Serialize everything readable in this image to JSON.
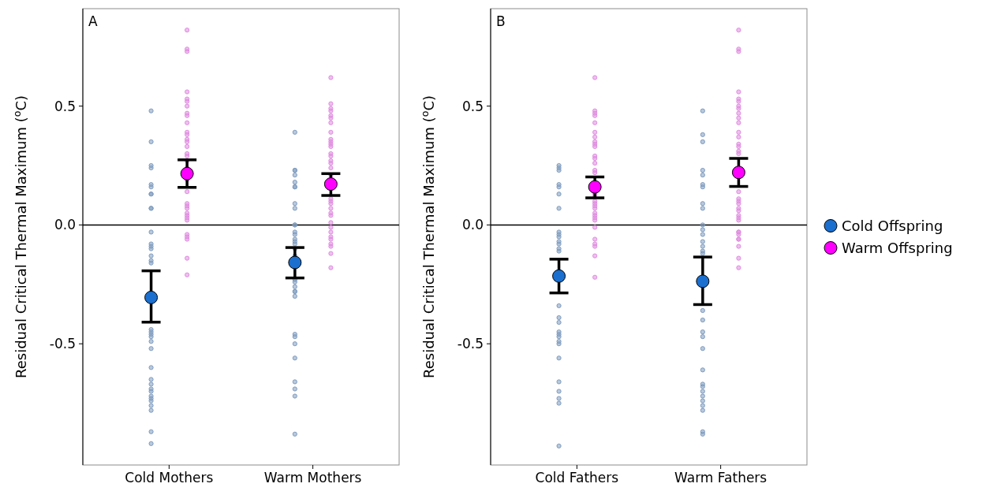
{
  "chart_data": [
    {
      "type": "scatter",
      "title": "A",
      "categories": [
        "Cold Mothers",
        "Warm Mothers"
      ],
      "ylabel": "Residual Critical Thermal Maximum ($^{o}$C)",
      "ylim": [
        -1.01,
        0.91
      ],
      "yticks": [
        {
          "value": -0.5,
          "label": "-0.5"
        },
        {
          "value": 0,
          "label": "0.0"
        },
        {
          "value": 0.5,
          "label": "0.5"
        }
      ],
      "ref_lines": [
        {
          "axis": "y",
          "value": 0,
          "color": "#000000"
        }
      ],
      "marker": "circle",
      "legend": false,
      "grid": false,
      "series": [
        {
          "color": "#7f9cbf",
          "x": [
            "Cold Mothers",
            "Cold Mothers",
            "Cold Mothers",
            "Cold Mothers",
            "Cold Mothers",
            "Cold Mothers",
            "Cold Mothers",
            "Cold Mothers",
            "Cold Mothers",
            "Cold Mothers",
            "Cold Mothers",
            "Cold Mothers",
            "Cold Mothers",
            "Cold Mothers",
            "Cold Mothers",
            "Cold Mothers",
            "Cold Mothers",
            "Cold Mothers",
            "Cold Mothers",
            "Cold Mothers",
            "Cold Mothers",
            "Cold Mothers",
            "Cold Mothers",
            "Cold Mothers",
            "Cold Mothers",
            "Cold Mothers",
            "Cold Mothers",
            "Cold Mothers",
            "Cold Mothers",
            "Cold Mothers",
            "Cold Mothers",
            "Cold Mothers",
            "Cold Mothers",
            "Cold Mothers",
            "Cold Mothers",
            "Warm Mothers",
            "Warm Mothers",
            "Warm Mothers",
            "Warm Mothers",
            "Warm Mothers",
            "Warm Mothers",
            "Warm Mothers",
            "Warm Mothers",
            "Warm Mothers",
            "Warm Mothers",
            "Warm Mothers",
            "Warm Mothers",
            "Warm Mothers",
            "Warm Mothers",
            "Warm Mothers",
            "Warm Mothers",
            "Warm Mothers",
            "Warm Mothers",
            "Warm Mothers",
            "Warm Mothers",
            "Warm Mothers",
            "Warm Mothers",
            "Warm Mothers",
            "Warm Mothers",
            "Warm Mothers",
            "Warm Mothers",
            "Warm Mothers",
            "Warm Mothers",
            "Warm Mothers",
            "Warm Mothers",
            "Warm Mothers",
            "Warm Mothers"
          ],
          "values": [
            0.48,
            0.35,
            0.25,
            0.24,
            0.17,
            0.16,
            0.13,
            0.13,
            0.07,
            0.07,
            -0.03,
            -0.08,
            -0.09,
            -0.1,
            -0.13,
            -0.15,
            -0.16,
            -0.44,
            -0.45,
            -0.46,
            -0.47,
            -0.49,
            -0.52,
            -0.6,
            -0.65,
            -0.67,
            -0.69,
            -0.7,
            -0.72,
            -0.73,
            -0.74,
            -0.76,
            -0.78,
            -0.87,
            -0.92,
            0.39,
            0.23,
            0.23,
            0.21,
            0.18,
            0.16,
            0.16,
            0.09,
            0.07,
            0.0,
            0.0,
            -0.03,
            -0.04,
            -0.06,
            -0.07,
            -0.08,
            -0.1,
            -0.13,
            -0.23,
            -0.24,
            -0.26,
            -0.28,
            -0.28,
            -0.3,
            -0.46,
            -0.47,
            -0.5,
            -0.56,
            -0.66,
            -0.69,
            -0.72,
            -0.88
          ]
        },
        {
          "color": "#e08ce0",
          "x": [
            "Cold Mothers",
            "Cold Mothers",
            "Cold Mothers",
            "Cold Mothers",
            "Cold Mothers",
            "Cold Mothers",
            "Cold Mothers",
            "Cold Mothers",
            "Cold Mothers",
            "Cold Mothers",
            "Cold Mothers",
            "Cold Mothers",
            "Cold Mothers",
            "Cold Mothers",
            "Cold Mothers",
            "Cold Mothers",
            "Cold Mothers",
            "Cold Mothers",
            "Cold Mothers",
            "Cold Mothers",
            "Cold Mothers",
            "Cold Mothers",
            "Cold Mothers",
            "Cold Mothers",
            "Cold Mothers",
            "Cold Mothers",
            "Cold Mothers",
            "Cold Mothers",
            "Cold Mothers",
            "Cold Mothers",
            "Cold Mothers",
            "Cold Mothers",
            "Cold Mothers",
            "Warm Mothers",
            "Warm Mothers",
            "Warm Mothers",
            "Warm Mothers",
            "Warm Mothers",
            "Warm Mothers",
            "Warm Mothers",
            "Warm Mothers",
            "Warm Mothers",
            "Warm Mothers",
            "Warm Mothers",
            "Warm Mothers",
            "Warm Mothers",
            "Warm Mothers",
            "Warm Mothers",
            "Warm Mothers",
            "Warm Mothers",
            "Warm Mothers",
            "Warm Mothers",
            "Warm Mothers",
            "Warm Mothers",
            "Warm Mothers",
            "Warm Mothers",
            "Warm Mothers",
            "Warm Mothers",
            "Warm Mothers",
            "Warm Mothers",
            "Warm Mothers",
            "Warm Mothers",
            "Warm Mothers",
            "Warm Mothers",
            "Warm Mothers",
            "Warm Mothers"
          ],
          "values": [
            0.82,
            0.74,
            0.73,
            0.56,
            0.53,
            0.52,
            0.5,
            0.47,
            0.46,
            0.43,
            0.39,
            0.38,
            0.36,
            0.35,
            0.33,
            0.3,
            0.29,
            0.27,
            0.24,
            0.19,
            0.14,
            0.09,
            0.08,
            0.07,
            0.05,
            0.04,
            0.03,
            0.02,
            -0.04,
            -0.05,
            -0.06,
            -0.14,
            -0.21,
            0.62,
            0.51,
            0.49,
            0.48,
            0.46,
            0.45,
            0.43,
            0.39,
            0.36,
            0.35,
            0.34,
            0.33,
            0.3,
            0.29,
            0.27,
            0.26,
            0.24,
            0.21,
            0.11,
            0.1,
            0.09,
            0.07,
            0.05,
            0.04,
            0.01,
            -0.01,
            -0.03,
            -0.05,
            -0.06,
            -0.08,
            -0.09,
            -0.12,
            -0.18
          ]
        },
        {
          "color": "#1b6fcf",
          "values": [
            -0.305,
            -0.158
          ],
          "errors": [
            [
              -0.409,
              -0.193
            ],
            [
              -0.223,
              -0.095
            ]
          ]
        },
        {
          "color": "#ff00ff",
          "values": [
            0.216,
            0.172
          ],
          "errors": [
            [
              0.158,
              0.274
            ],
            [
              0.124,
              0.216
            ]
          ]
        }
      ]
    },
    {
      "type": "scatter",
      "title": "B",
      "categories": [
        "Cold Fathers",
        "Warm Fathers"
      ],
      "ylabel": "Residual Critical Thermal Maximum ($^{o}$C)",
      "ylim": [
        -1.01,
        0.91
      ],
      "yticks": [
        {
          "value": -0.5,
          "label": "-0.5"
        },
        {
          "value": 0,
          "label": "0.0"
        },
        {
          "value": 0.5,
          "label": "0.5"
        }
      ],
      "ref_lines": [
        {
          "axis": "y",
          "value": 0,
          "color": "#000000"
        }
      ],
      "marker": "circle",
      "legend": "right",
      "grid": false,
      "series": [
        {
          "color": "#7f9cbf",
          "x": [
            "Cold Fathers",
            "Cold Fathers",
            "Cold Fathers",
            "Cold Fathers",
            "Cold Fathers",
            "Cold Fathers",
            "Cold Fathers",
            "Cold Fathers",
            "Cold Fathers",
            "Cold Fathers",
            "Cold Fathers",
            "Cold Fathers",
            "Cold Fathers",
            "Cold Fathers",
            "Cold Fathers",
            "Cold Fathers",
            "Cold Fathers",
            "Cold Fathers",
            "Cold Fathers",
            "Cold Fathers",
            "Cold Fathers",
            "Cold Fathers",
            "Cold Fathers",
            "Cold Fathers",
            "Cold Fathers",
            "Cold Fathers",
            "Cold Fathers",
            "Cold Fathers",
            "Warm Fathers",
            "Warm Fathers",
            "Warm Fathers",
            "Warm Fathers",
            "Warm Fathers",
            "Warm Fathers",
            "Warm Fathers",
            "Warm Fathers",
            "Warm Fathers",
            "Warm Fathers",
            "Warm Fathers",
            "Warm Fathers",
            "Warm Fathers",
            "Warm Fathers",
            "Warm Fathers",
            "Warm Fathers",
            "Warm Fathers",
            "Warm Fathers",
            "Warm Fathers",
            "Warm Fathers",
            "Warm Fathers",
            "Warm Fathers",
            "Warm Fathers",
            "Warm Fathers",
            "Warm Fathers",
            "Warm Fathers",
            "Warm Fathers",
            "Warm Fathers",
            "Warm Fathers",
            "Warm Fathers",
            "Warm Fathers"
          ],
          "values": [
            0.25,
            0.24,
            0.23,
            0.17,
            0.16,
            0.13,
            0.07,
            -0.03,
            -0.04,
            -0.05,
            -0.07,
            -0.08,
            -0.1,
            -0.11,
            -0.34,
            -0.39,
            -0.41,
            -0.45,
            -0.46,
            -0.47,
            -0.49,
            -0.5,
            -0.56,
            -0.66,
            -0.7,
            -0.73,
            -0.75,
            -0.93,
            0.48,
            0.38,
            0.35,
            0.23,
            0.21,
            0.17,
            0.16,
            0.09,
            0.07,
            0.0,
            -0.02,
            -0.04,
            -0.07,
            -0.09,
            -0.11,
            -0.12,
            -0.36,
            -0.4,
            -0.45,
            -0.47,
            -0.52,
            -0.61,
            -0.67,
            -0.68,
            -0.7,
            -0.72,
            -0.74,
            -0.76,
            -0.78,
            -0.87,
            -0.88
          ]
        },
        {
          "color": "#e08ce0",
          "x": [
            "Cold Fathers",
            "Cold Fathers",
            "Cold Fathers",
            "Cold Fathers",
            "Cold Fathers",
            "Cold Fathers",
            "Cold Fathers",
            "Cold Fathers",
            "Cold Fathers",
            "Cold Fathers",
            "Cold Fathers",
            "Cold Fathers",
            "Cold Fathers",
            "Cold Fathers",
            "Cold Fathers",
            "Cold Fathers",
            "Cold Fathers",
            "Cold Fathers",
            "Cold Fathers",
            "Cold Fathers",
            "Cold Fathers",
            "Cold Fathers",
            "Cold Fathers",
            "Cold Fathers",
            "Cold Fathers",
            "Cold Fathers",
            "Cold Fathers",
            "Cold Fathers",
            "Cold Fathers",
            "Cold Fathers",
            "Cold Fathers",
            "Warm Fathers",
            "Warm Fathers",
            "Warm Fathers",
            "Warm Fathers",
            "Warm Fathers",
            "Warm Fathers",
            "Warm Fathers",
            "Warm Fathers",
            "Warm Fathers",
            "Warm Fathers",
            "Warm Fathers",
            "Warm Fathers",
            "Warm Fathers",
            "Warm Fathers",
            "Warm Fathers",
            "Warm Fathers",
            "Warm Fathers",
            "Warm Fathers",
            "Warm Fathers",
            "Warm Fathers",
            "Warm Fathers",
            "Warm Fathers",
            "Warm Fathers",
            "Warm Fathers",
            "Warm Fathers",
            "Warm Fathers",
            "Warm Fathers",
            "Warm Fathers",
            "Warm Fathers",
            "Warm Fathers",
            "Warm Fathers",
            "Warm Fathers",
            "Warm Fathers",
            "Warm Fathers"
          ],
          "values": [
            0.62,
            0.48,
            0.47,
            0.46,
            0.43,
            0.39,
            0.37,
            0.35,
            0.34,
            0.33,
            0.29,
            0.28,
            0.26,
            0.23,
            0.22,
            0.13,
            0.12,
            0.1,
            0.09,
            0.08,
            0.07,
            0.05,
            0.04,
            0.03,
            0.02,
            -0.01,
            -0.06,
            -0.08,
            -0.09,
            -0.13,
            -0.22,
            0.82,
            0.74,
            0.73,
            0.56,
            0.53,
            0.52,
            0.5,
            0.49,
            0.47,
            0.45,
            0.43,
            0.39,
            0.37,
            0.34,
            0.33,
            0.31,
            0.3,
            0.14,
            0.11,
            0.1,
            0.09,
            0.07,
            0.06,
            0.04,
            0.03,
            0.02,
            -0.03,
            -0.03,
            -0.04,
            -0.06,
            -0.06,
            -0.09,
            -0.14,
            -0.18
          ]
        },
        {
          "name": "Cold Offspring",
          "color": "#1b6fcf",
          "values": [
            -0.215,
            -0.237
          ],
          "errors": [
            [
              -0.286,
              -0.144
            ],
            [
              -0.335,
              -0.135
            ]
          ]
        },
        {
          "name": "Warm Offspring",
          "color": "#ff00ff",
          "values": [
            0.16,
            0.221
          ],
          "errors": [
            [
              0.114,
              0.202
            ],
            [
              0.162,
              0.28
            ]
          ]
        }
      ]
    }
  ]
}
